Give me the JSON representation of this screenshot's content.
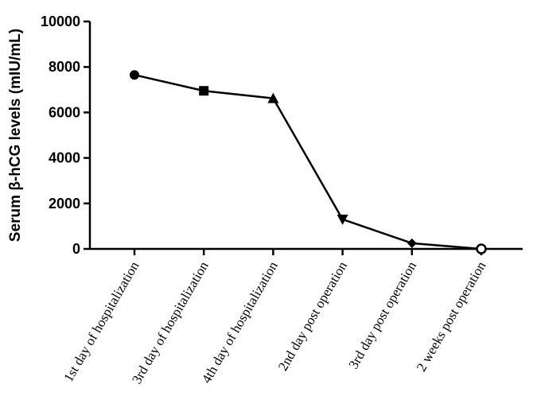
{
  "chart_data": {
    "type": "line",
    "title": "",
    "xlabel": "",
    "ylabel": "Serum β-hCG levels (mIU/mL)",
    "ylim": [
      0,
      10000
    ],
    "yticks": [
      0,
      2000,
      4000,
      6000,
      8000,
      10000
    ],
    "categories": [
      "1st day of hospitalization",
      "3rd day of hospitalization",
      "4th day of hospitalization",
      "2nd day post operation",
      "3rd day post operation",
      "2 weeks post operation"
    ],
    "series": [
      {
        "values": [
          7650,
          6950,
          6620,
          1300,
          250,
          0
        ],
        "markers": [
          "circle",
          "square",
          "triangle-up",
          "triangle-down",
          "diamond",
          "circle-open"
        ],
        "color": "#000000"
      }
    ],
    "grid": false,
    "legend": "none"
  }
}
